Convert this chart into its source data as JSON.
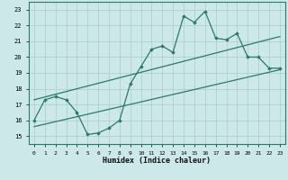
{
  "xlabel": "Humidex (Indice chaleur)",
  "ylabel": "",
  "xlim": [
    -0.5,
    23.5
  ],
  "ylim": [
    14.5,
    23.5
  ],
  "xticks": [
    0,
    1,
    2,
    3,
    4,
    5,
    6,
    7,
    8,
    9,
    10,
    11,
    12,
    13,
    14,
    15,
    16,
    17,
    18,
    19,
    20,
    21,
    22,
    23
  ],
  "yticks": [
    15,
    16,
    17,
    18,
    19,
    20,
    21,
    22,
    23
  ],
  "bg_color": "#cce8e8",
  "line_color": "#2a7a6a",
  "grid_color": "#a8cccc",
  "main_line_x": [
    0,
    1,
    2,
    3,
    4,
    5,
    6,
    7,
    8,
    9,
    10,
    11,
    12,
    13,
    14,
    15,
    16,
    17,
    18,
    19,
    20,
    21,
    22,
    23
  ],
  "main_line_y": [
    16.0,
    17.3,
    17.5,
    17.3,
    16.5,
    15.1,
    15.2,
    15.5,
    16.0,
    18.3,
    19.4,
    20.5,
    20.7,
    20.3,
    22.6,
    22.2,
    22.9,
    21.2,
    21.1,
    21.5,
    20.0,
    20.0,
    19.3,
    19.3
  ],
  "trend1_x": [
    0,
    23
  ],
  "trend1_y": [
    17.3,
    21.3
  ],
  "trend2_x": [
    0,
    23
  ],
  "trend2_y": [
    15.6,
    19.2
  ]
}
